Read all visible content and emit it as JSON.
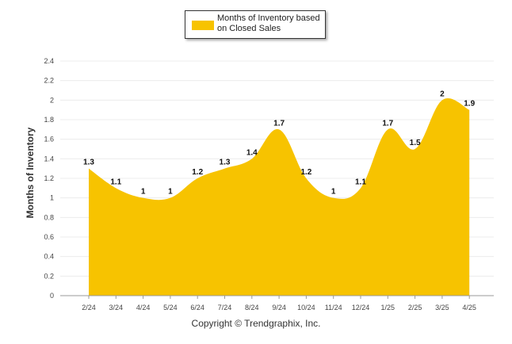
{
  "chart_data": {
    "type": "area",
    "categories": [
      "2/24",
      "3/24",
      "4/24",
      "5/24",
      "6/24",
      "7/24",
      "8/24",
      "9/24",
      "10/24",
      "11/24",
      "12/24",
      "1/25",
      "2/25",
      "3/25",
      "4/25"
    ],
    "series": [
      {
        "name": "Months of Inventory based on Closed Sales",
        "values": [
          1.3,
          1.1,
          1,
          1,
          1.2,
          1.3,
          1.4,
          1.7,
          1.2,
          1,
          1.1,
          1.7,
          1.5,
          2,
          1.9
        ]
      }
    ],
    "data_labels": [
      "1.3",
      "1.1",
      "1",
      "1",
      "1.2",
      "1.3",
      "1.4",
      "1.7",
      "1.2",
      "1",
      "1.1",
      "1.7",
      "1.5",
      "2",
      "1.9"
    ],
    "ylabel": "Months of Inventory",
    "xlabel": "",
    "ylim": [
      0,
      2.4
    ],
    "yticks": [
      "0",
      "0.2",
      "0.4",
      "0.6",
      "0.8",
      "1",
      "1.2",
      "1.4",
      "1.6",
      "1.8",
      "2",
      "2.2",
      "2.4"
    ],
    "grid": true,
    "legend_position": "top-center",
    "color": "#f7c300"
  },
  "footer": "Copyright © Trendgraphix, Inc."
}
